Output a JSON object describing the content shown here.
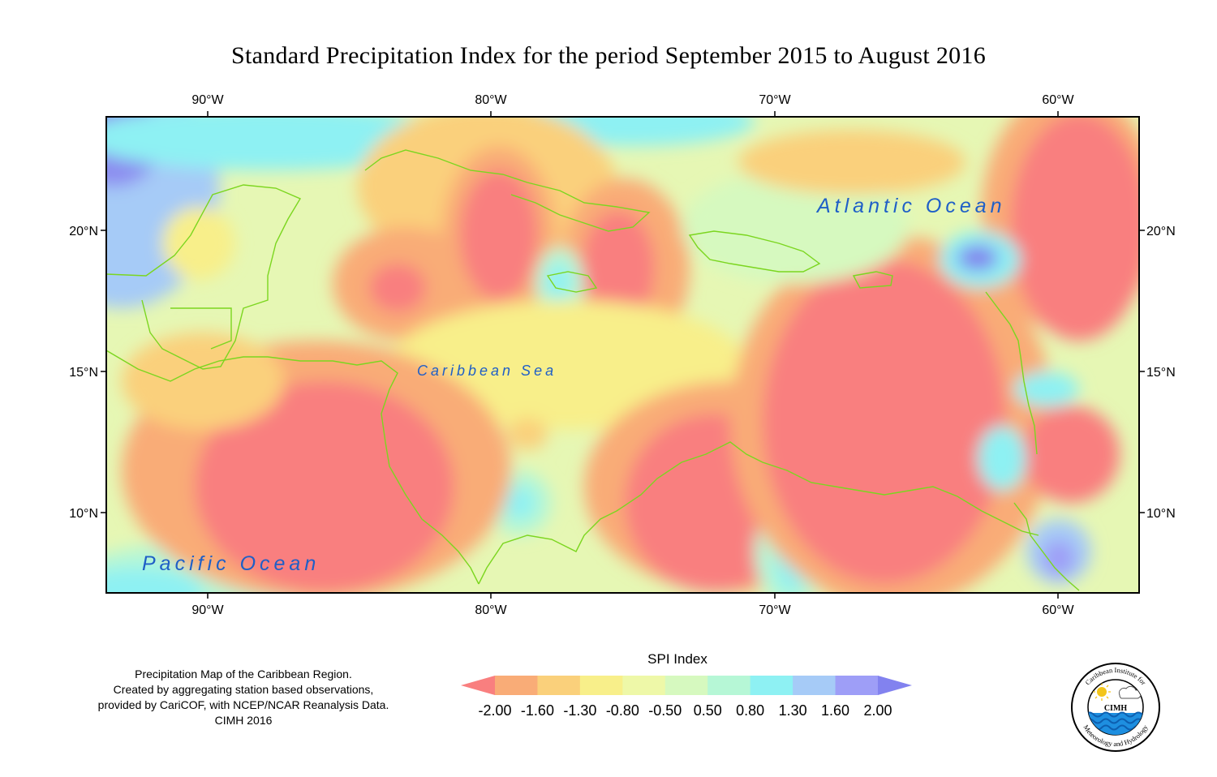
{
  "title": "Standard Precipitation Index for the period September 2015 to August 2016",
  "axes": {
    "top": [
      "90°W",
      "80°W",
      "70°W",
      "60°W"
    ],
    "bottom": [
      "90°W",
      "80°W",
      "70°W",
      "60°W"
    ],
    "left": [
      "20°N",
      "15°N",
      "10°N"
    ],
    "right": [
      "20°N",
      "15°N",
      "10°N"
    ]
  },
  "labels": {
    "atlantic": "Atlantic Ocean",
    "caribbean": "Caribbean Sea",
    "pacific": "Pacific Ocean"
  },
  "notes": [
    "Precipitation Map of the Caribbean Region.",
    "Created by aggregating station based observations,",
    "provided by CariCOF, with NCEP/NCAR Reanalysis Data.",
    "CIMH 2016"
  ],
  "legend": {
    "title": "SPI Index",
    "ticks": [
      "-2.00",
      "-1.60",
      "-1.30",
      "-0.80",
      "-0.50",
      "0.50",
      "0.80",
      "1.30",
      "1.60",
      "2.00"
    ],
    "colors": [
      "#f97f7f",
      "#f9ac77",
      "#fad07b",
      "#f8ef8a",
      "#eef8a8",
      "#d6f9bf",
      "#b6f7d6",
      "#8ef1f3",
      "#a6cbf7",
      "#9e9ef7",
      "#8282ef"
    ]
  },
  "logo": {
    "center_text": "CIMH",
    "ring_text_top": "Caribbean Institute for",
    "ring_text_bottom": "Meteorology and Hydrology"
  },
  "colors": {
    "coastline": "#7bd61f",
    "label_blue": "#1f5fc7"
  }
}
